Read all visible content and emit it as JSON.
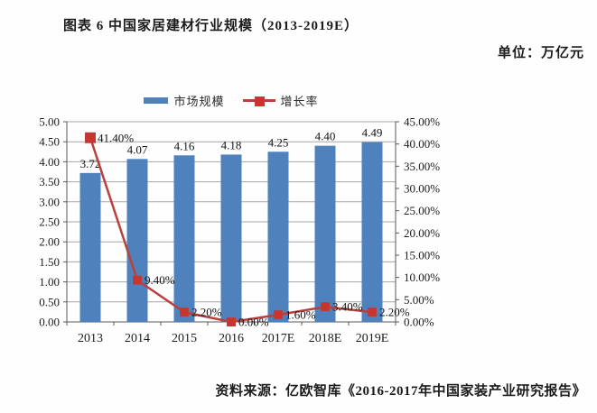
{
  "header": {
    "title": "图表 6 中国家居建材行业规模（2013-2019E）",
    "unit": "单位：万亿元"
  },
  "footer": {
    "source": "资料来源：亿欧智库《2016-2017年中国家装产业研究报告》"
  },
  "chart_data": {
    "type": "bar",
    "combo": "bar+line",
    "title": "图表 6 中国家居建材行业规模（2013-2019E）",
    "unit": "万亿元",
    "categories": [
      "2013",
      "2014",
      "2015",
      "2016",
      "2017E",
      "2018E",
      "2019E"
    ],
    "series": [
      {
        "name": "市场规模",
        "type": "bar",
        "axis": "left",
        "color": "#4f81bd",
        "values": [
          3.72,
          4.07,
          4.16,
          4.18,
          4.25,
          4.4,
          4.49
        ],
        "labels": [
          "3.72",
          "4.07",
          "4.16",
          "4.18",
          "4.25",
          "4.40",
          "4.49"
        ]
      },
      {
        "name": "增长率",
        "type": "line",
        "axis": "right",
        "color": "#b8403d",
        "marker_fill": "#c8342e",
        "values": [
          41.4,
          9.4,
          2.2,
          0.0,
          1.6,
          3.4,
          2.2
        ],
        "labels": [
          "41.40%",
          "9.40%",
          "2.20%",
          "0.00%",
          "1.60%",
          "3.40%",
          "2.20%"
        ]
      }
    ],
    "left_axis": {
      "min": 0,
      "max": 5,
      "step": 0.5,
      "tick_format": "0.00"
    },
    "right_axis": {
      "min": 0,
      "max": 45,
      "step": 5,
      "tick_format": "0.00%"
    },
    "grid": true,
    "legend_position": "top",
    "colors": {
      "grid": "#a6a6a6",
      "axis": "#595959",
      "text": "#1c1c1c"
    }
  }
}
